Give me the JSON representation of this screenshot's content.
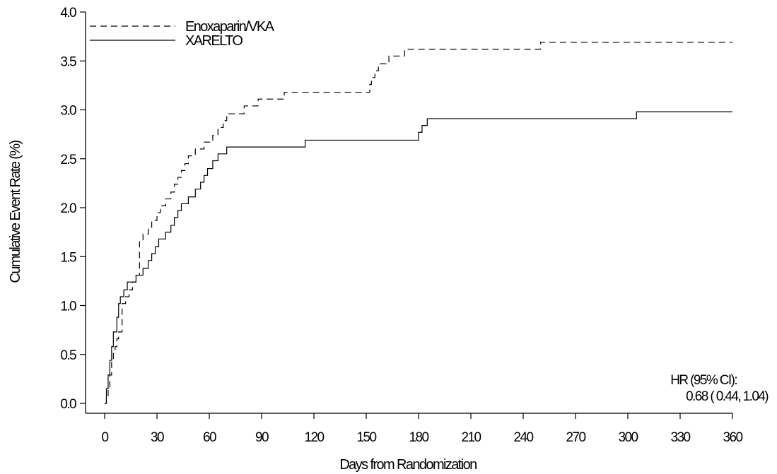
{
  "chart_data": {
    "type": "line",
    "step": true,
    "xlabel": "Days from Randomization",
    "ylabel": "Cumulative Event Rate (%)",
    "xlim": [
      0,
      360
    ],
    "ylim": [
      0,
      4.0
    ],
    "x_ticks": [
      0,
      30,
      60,
      90,
      120,
      150,
      180,
      210,
      240,
      270,
      300,
      330,
      360
    ],
    "y_ticks": [
      0.0,
      0.5,
      1.0,
      1.5,
      2.0,
      2.5,
      3.0,
      3.5,
      4.0
    ],
    "x_tick_labels": [
      "0",
      "30",
      "60",
      "90",
      "120",
      "150",
      "180",
      "210",
      "240",
      "270",
      "300",
      "330",
      "360"
    ],
    "y_tick_labels": [
      "0.0",
      "0.5",
      "1.0",
      "1.5",
      "2.0",
      "2.5",
      "3.0",
      "3.5",
      "4.0"
    ],
    "grid": false,
    "legend_position": "top-left",
    "series": [
      {
        "name": "Enoxaparin/VKA",
        "line_style": "dashed",
        "color": "#000000",
        "x": [
          0,
          1,
          2,
          3,
          4,
          5,
          6,
          7,
          8,
          10,
          12,
          14,
          16,
          18,
          20,
          22,
          25,
          27,
          30,
          32,
          35,
          38,
          40,
          42,
          44,
          46,
          48,
          52,
          57,
          62,
          65,
          68,
          70,
          80,
          88,
          103,
          152,
          153,
          155,
          157,
          163,
          172,
          250,
          360
        ],
        "y": [
          0.0,
          0.07,
          0.15,
          0.29,
          0.44,
          0.51,
          0.58,
          0.66,
          0.73,
          1.02,
          1.09,
          1.16,
          1.24,
          1.31,
          1.66,
          1.73,
          1.8,
          1.87,
          1.95,
          2.02,
          2.09,
          2.16,
          2.24,
          2.31,
          2.38,
          2.45,
          2.53,
          2.6,
          2.67,
          2.74,
          2.82,
          2.89,
          2.96,
          3.04,
          3.11,
          3.18,
          3.26,
          3.33,
          3.4,
          3.47,
          3.55,
          3.62,
          3.69,
          3.69
        ]
      },
      {
        "name": "XARELTO",
        "line_style": "solid",
        "color": "#000000",
        "x": [
          0,
          1,
          2,
          3,
          4,
          5,
          7,
          8,
          9,
          11,
          13,
          18,
          22,
          25,
          27,
          29,
          31,
          35,
          38,
          40,
          42,
          44,
          48,
          52,
          55,
          57,
          59,
          62,
          65,
          70,
          115,
          180,
          182,
          185,
          305,
          360
        ],
        "y": [
          0.0,
          0.15,
          0.29,
          0.44,
          0.58,
          0.73,
          0.88,
          1.02,
          1.09,
          1.16,
          1.24,
          1.31,
          1.38,
          1.46,
          1.53,
          1.6,
          1.68,
          1.75,
          1.82,
          1.9,
          1.97,
          2.04,
          2.11,
          2.19,
          2.26,
          2.33,
          2.4,
          2.48,
          2.55,
          2.62,
          2.69,
          2.77,
          2.84,
          2.91,
          2.98,
          2.98
        ]
      }
    ],
    "annotations": [
      "HR (95% CI):",
      "0.68 ( 0.44,  1.04)"
    ]
  }
}
